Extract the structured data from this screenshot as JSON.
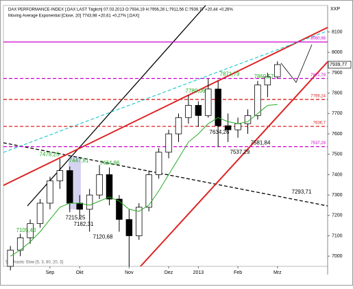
{
  "chart_data": {
    "type": "candlestick",
    "title": "DAX PERFORMANCE-INDEX [.DAX LAST Täglich] 07.03.2013 O:7934,19 H:7956,26 L:7911,56 C:7939,77 +20,44 +0,26%",
    "subtitle": "Moving Average Exponential [Close, 20] 7743,98 +20,61 +0,27% [.DAX]",
    "indicator": "Stochastic Slow [5, 3, 80, 20, 3]",
    "axis_label": "XXP",
    "last_price": {
      "value": 7939.77,
      "label": "7939,77"
    },
    "categories": [
      null,
      null,
      null,
      null,
      "Sep",
      null,
      null,
      "Okt",
      null,
      null,
      null,
      null,
      "Nov",
      null,
      null,
      null,
      "Dez",
      null,
      null,
      "2013",
      null,
      null,
      null,
      "Feb",
      null,
      null,
      null,
      "Mrz"
    ],
    "open": [
      6950,
      7030,
      7090,
      7160,
      7260,
      7370,
      7420,
      7260,
      7230,
      7300,
      7400,
      7280,
      7180,
      7100,
      7240,
      7400,
      7510,
      7600,
      7680,
      7740,
      7690,
      7820,
      7640,
      7620,
      7650,
      7690,
      7840,
      7880
    ],
    "high": [
      7050,
      7110,
      7180,
      7280,
      7390,
      7478,
      7440,
      7300,
      7330,
      7447,
      7435,
      7300,
      7230,
      7260,
      7420,
      7530,
      7620,
      7700,
      7789,
      7760,
      7871,
      7860,
      7700,
      7680,
      7720,
      7860,
      7900,
      7956
    ],
    "low": [
      6930,
      7000,
      7060,
      7140,
      7230,
      7330,
      7215,
      7182,
      7120,
      7280,
      7250,
      7120,
      6950,
      7080,
      7220,
      7380,
      7480,
      7560,
      7650,
      7634,
      7680,
      7537,
      7560,
      7581,
      7600,
      7670,
      7780,
      7870
    ],
    "close": [
      7030,
      7090,
      7160,
      7260,
      7370,
      7420,
      7260,
      7230,
      7300,
      7400,
      7280,
      7180,
      7100,
      7240,
      7400,
      7510,
      7600,
      7680,
      7740,
      7690,
      7820,
      7640,
      7620,
      7650,
      7690,
      7840,
      7880,
      7940
    ],
    "series": [
      {
        "name": "Moving Average Exponential",
        "color": "#22aa22",
        "values": [
          7000,
          7030,
          7070,
          7120,
          7180,
          7240,
          7260,
          7260,
          7250,
          7270,
          7290,
          7270,
          7230,
          7220,
          7250,
          7320,
          7400,
          7480,
          7560,
          7600,
          7650,
          7680,
          7660,
          7650,
          7660,
          7700,
          7740,
          7744
        ]
      }
    ],
    "levels": [
      {
        "value": 8050.98,
        "label": "8050,98",
        "color": "#cc00cc",
        "dash": false
      },
      {
        "value": 7871.79,
        "label": "7871,79",
        "color": "#cc00cc",
        "dash": true
      },
      {
        "value": 7769.24,
        "label": "7769,24",
        "color": "#dd2222",
        "dash": true
      },
      {
        "value": 7636.7,
        "label": "7636,7",
        "color": "#dd2222",
        "dash": true
      },
      {
        "value": 7537.29,
        "label": "7537,29",
        "color": "#cc00cc",
        "dash": true
      }
    ],
    "annotations": [
      {
        "value": 7105.43,
        "label": "7105,43"
      },
      {
        "value": 7478.25,
        "label": "7478,25"
      },
      {
        "value": 7447.81,
        "label": "7447,81"
      },
      {
        "value": 7434.96,
        "label": "7434,96"
      },
      {
        "value": 7215.25,
        "label": "7215,25"
      },
      {
        "value": 7182.31,
        "label": "7182,31"
      },
      {
        "value": 7120.68,
        "label": "7120,68"
      },
      {
        "value": 7789.06,
        "label": "7789,06"
      },
      {
        "value": 7871.79,
        "label": "7871,79"
      },
      {
        "value": 7860.57,
        "label": "7860,57"
      },
      {
        "value": 7634.26,
        "label": "7634,26"
      },
      {
        "value": 7537.29,
        "label": "7537,29"
      },
      {
        "value": 7581.84,
        "label": "7581,84"
      },
      {
        "value": 7293.71,
        "label": "7293,71"
      }
    ],
    "ylim": [
      6950,
      8230
    ],
    "yticks": [
      7000,
      7100,
      7200,
      7300,
      7400,
      7500,
      7600,
      7700,
      7800,
      7900,
      8000,
      8100
    ],
    "grid": false
  }
}
